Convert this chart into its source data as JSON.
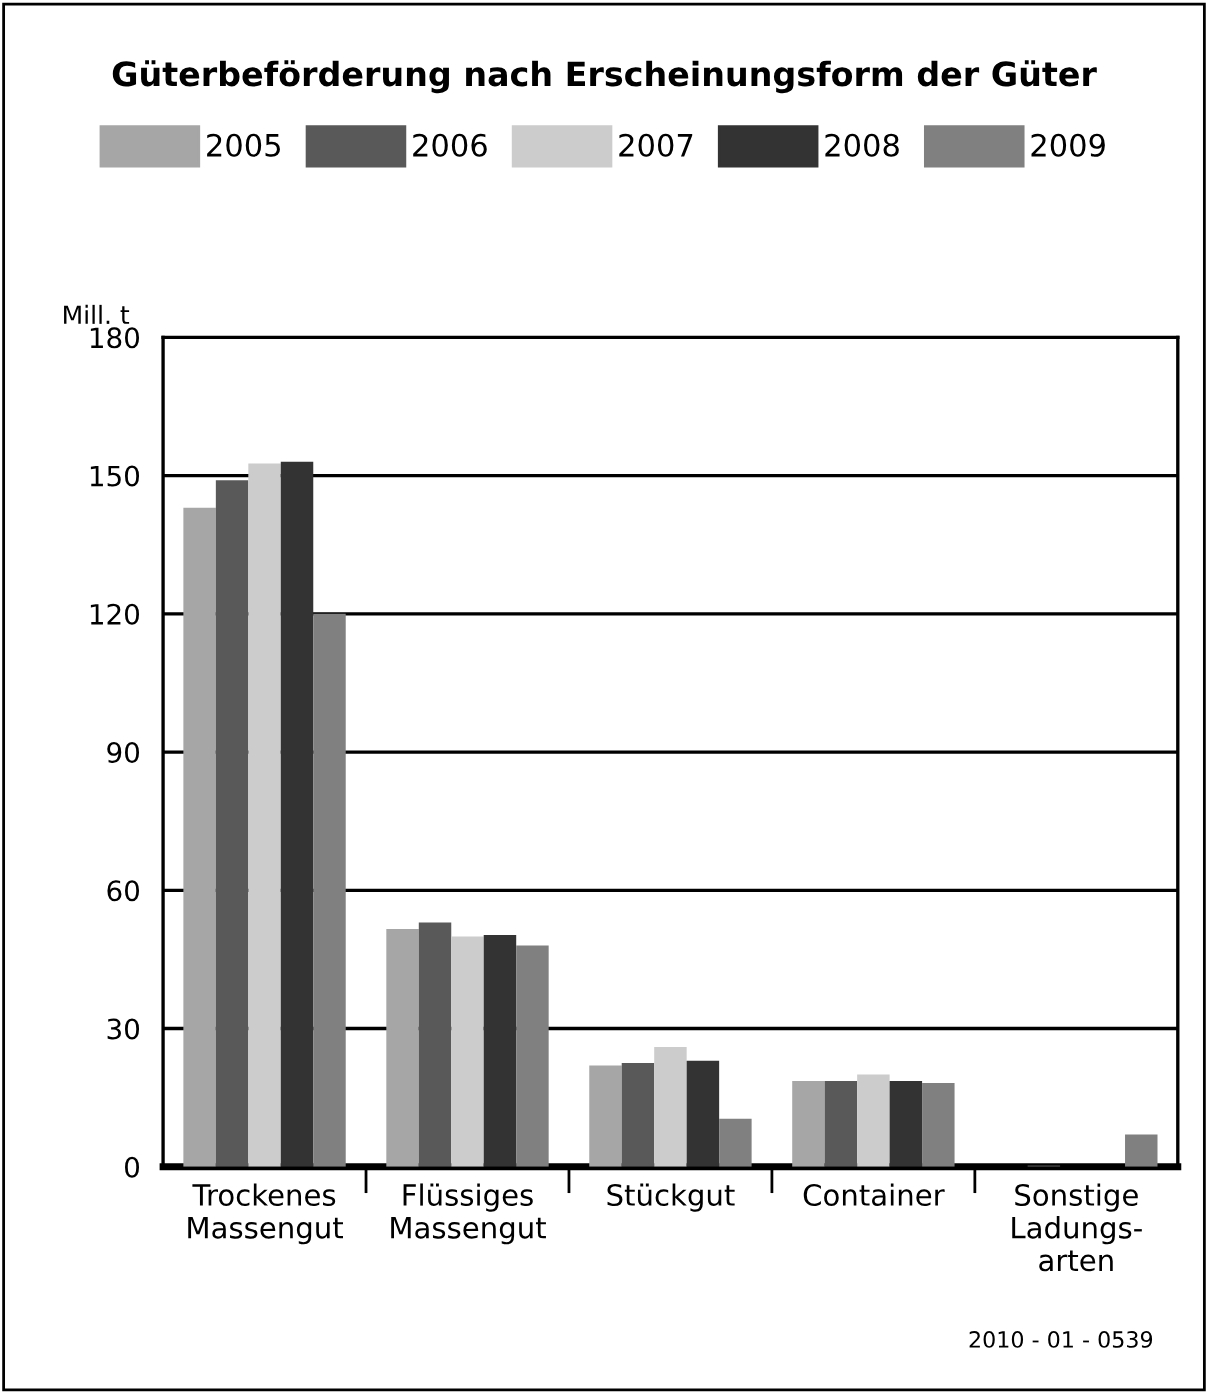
{
  "chart_data": {
    "type": "bar",
    "title": "Güterbeförderung nach Erscheinungsform der Güter",
    "ylabel": "Mill. t",
    "categories": [
      "Trockenes\nMassengut",
      "Flüssiges\nMassengut",
      "Stückgut",
      "Container",
      "Sonstige\nLadungs-\narten"
    ],
    "series": [
      {
        "name": "2005",
        "color": "#a6a6a6",
        "values": [
          143,
          51.6,
          22,
          18.6,
          null
        ]
      },
      {
        "name": "2006",
        "color": "#595959",
        "values": [
          149,
          53,
          22.5,
          18.6,
          0.3
        ]
      },
      {
        "name": "2007",
        "color": "#cccccc",
        "values": [
          152.6,
          50,
          26,
          20,
          null
        ]
      },
      {
        "name": "2008",
        "color": "#333333",
        "values": [
          153,
          50.3,
          23,
          18.6,
          null
        ]
      },
      {
        "name": "2009",
        "color": "#808080",
        "values": [
          120,
          48,
          10.4,
          18.2,
          7
        ]
      }
    ],
    "ylim": [
      0,
      180
    ],
    "yticks": [
      0,
      30,
      60,
      90,
      120,
      150,
      180
    ],
    "grid": "y",
    "legend": "top",
    "annotations": [
      "2010 - 01 - 0539"
    ]
  }
}
